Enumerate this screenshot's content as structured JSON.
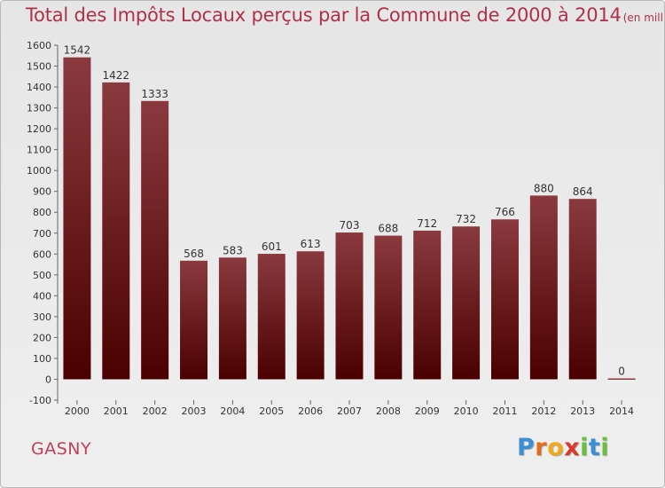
{
  "header": {
    "title": "Total des Impôts Locaux perçus par la Commune de 2000 à 2014",
    "unit": "(en milliers d'€)"
  },
  "footer": {
    "commune": "GASNY",
    "logo": [
      "P",
      "r",
      "o",
      "x",
      "i",
      "t",
      "i"
    ]
  },
  "colors": {
    "bar_top": "#8a3a3f",
    "bar_bottom": "#4a0000",
    "title": "#b0304a",
    "commune": "#c0405a"
  },
  "chart_data": {
    "type": "bar",
    "title": "Total des Impôts Locaux perçus par la Commune de 2000 à 2014",
    "unit": "(en milliers d'€)",
    "categories": [
      "2000",
      "2001",
      "2002",
      "2003",
      "2004",
      "2005",
      "2006",
      "2007",
      "2008",
      "2009",
      "2010",
      "2011",
      "2012",
      "2013",
      "2014"
    ],
    "values": [
      1542,
      1422,
      1333,
      568,
      583,
      601,
      613,
      703,
      688,
      712,
      732,
      766,
      880,
      864,
      0
    ],
    "data_labels": [
      "1542",
      "1422",
      "1333",
      "568",
      "583",
      "601",
      "613",
      "703",
      "688",
      "712",
      "732",
      "766",
      "880",
      "864",
      "0"
    ],
    "yticks": [
      -100,
      0,
      100,
      200,
      300,
      400,
      500,
      600,
      700,
      800,
      900,
      1000,
      1100,
      1200,
      1300,
      1400,
      1500,
      1600
    ],
    "ylim": [
      -100,
      1600
    ],
    "grid": false,
    "legend": "none"
  }
}
